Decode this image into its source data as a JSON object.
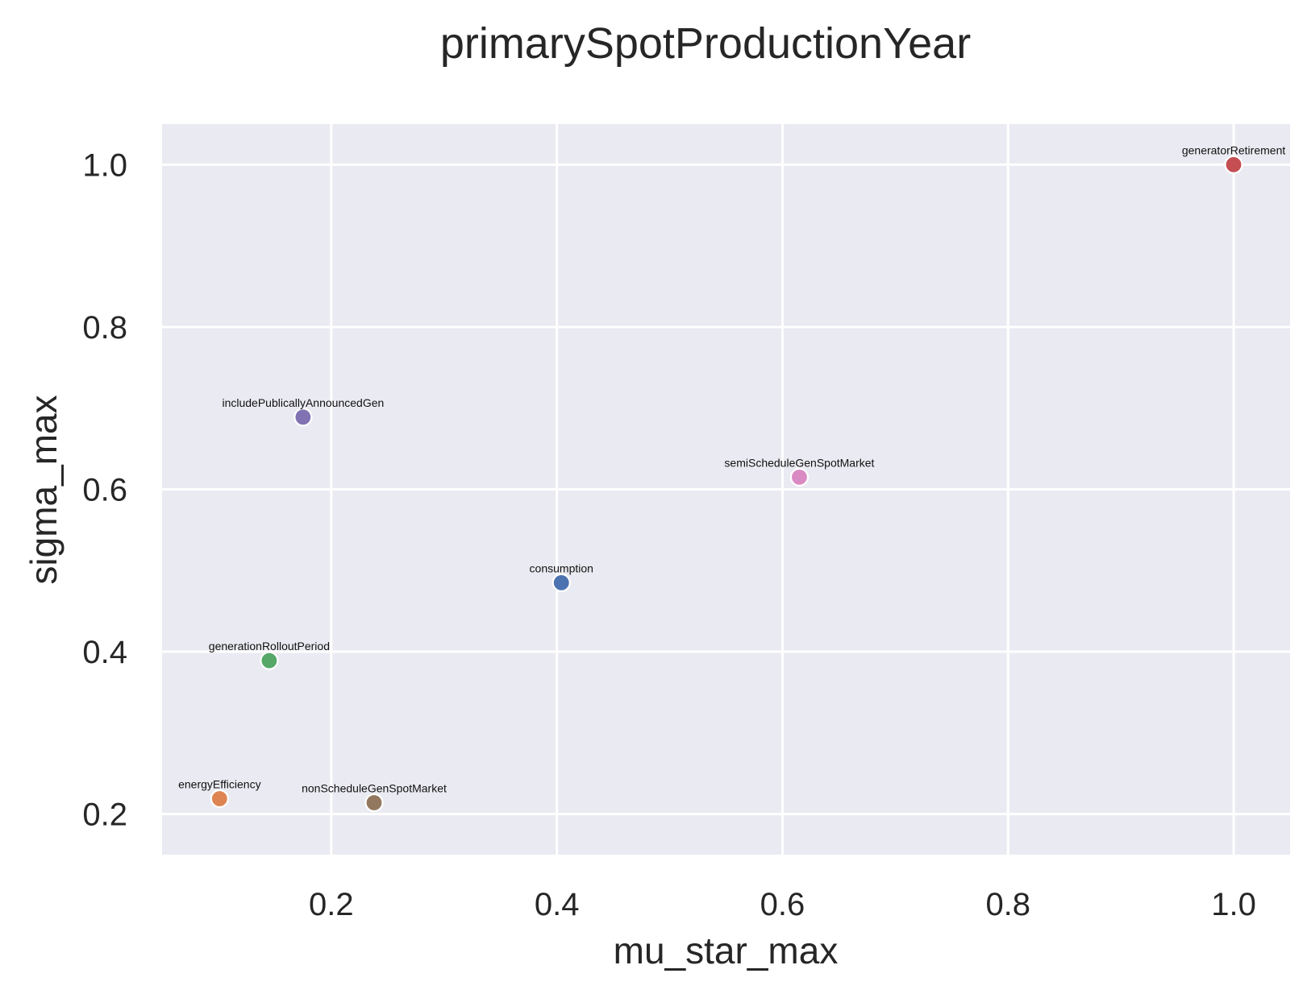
{
  "chart_data": {
    "type": "scatter",
    "title": "primarySpotProductionYear",
    "xlabel": "mu_star_max",
    "ylabel": "sigma_max",
    "xlim": [
      0.05,
      1.05
    ],
    "ylim": [
      0.15,
      1.05
    ],
    "xticks": [
      0.2,
      0.4,
      0.6,
      0.8,
      1.0
    ],
    "yticks": [
      0.2,
      0.4,
      0.6,
      0.8,
      1.0
    ],
    "xtick_labels": [
      "0.2",
      "0.4",
      "0.6",
      "0.8",
      "1.0"
    ],
    "ytick_labels": [
      "0.2",
      "0.4",
      "0.6",
      "0.8",
      "1.0"
    ],
    "grid": true,
    "background": "#eaeaf2",
    "grid_color": "#ffffff",
    "points": [
      {
        "label": "consumption",
        "x": 0.404,
        "y": 0.485,
        "color": "#4c72b0"
      },
      {
        "label": "energyEfficiency",
        "x": 0.101,
        "y": 0.219,
        "color": "#dd8452"
      },
      {
        "label": "generationRolloutPeriod",
        "x": 0.145,
        "y": 0.389,
        "color": "#55a868"
      },
      {
        "label": "generatorRetirement",
        "x": 1.0,
        "y": 1.0,
        "color": "#c44e52"
      },
      {
        "label": "includePublicallyAnnouncedGen",
        "x": 0.175,
        "y": 0.689,
        "color": "#8172b3"
      },
      {
        "label": "nonScheduleGenSpotMarket",
        "x": 0.238,
        "y": 0.214,
        "color": "#937860"
      },
      {
        "label": "semiScheduleGenSpotMarket",
        "x": 0.615,
        "y": 0.615,
        "color": "#da8bc3"
      }
    ]
  }
}
